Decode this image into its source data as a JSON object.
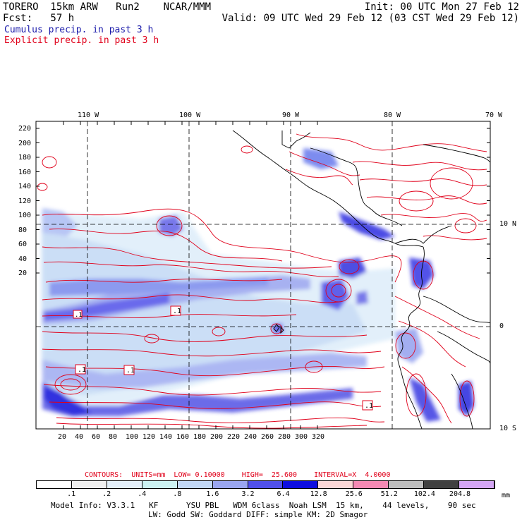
{
  "header": {
    "model": "TORERO  15km ARW   Run2    NCAR/MMM",
    "init": "Init: 00 UTC Mon 27 Feb 12",
    "fcst": "Fcst:   57 h",
    "valid": "Valid: 09 UTC Wed 29 Feb 12 (03 CST Wed 29 Feb 12)",
    "cumulus": "Cumulus precip. in past 3 h",
    "explicit": "Explicit precip. in past 3 h"
  },
  "map": {
    "lon_labels": [
      "110 W",
      "100 W",
      "90 W",
      "80 W",
      "70 W"
    ],
    "lat_labels_right": [
      "10 N",
      "0",
      "10 S"
    ],
    "y_ticks": [
      "220",
      "200",
      "180",
      "160",
      "140",
      "120",
      "100",
      "80",
      "60",
      "40",
      "20"
    ],
    "x_ticks": [
      "20",
      "40",
      "60",
      "80",
      "100",
      "120",
      "140",
      "160",
      "180",
      "200",
      "220",
      "240",
      "260",
      "280",
      "300",
      "320"
    ],
    "box_labels": [
      ".1",
      ".1",
      ".1",
      ".1",
      ".1"
    ],
    "colors": {
      "cumulus": "#1a1aaa",
      "explicit": "#e0001a"
    }
  },
  "contours": {
    "label": "CONTOURS:  UNITS=mm  LOW= 0.10000    HIGH=  25.600    INTERVAL=X  4.0000"
  },
  "colorbar": {
    "labels": [
      ".1",
      ".2",
      ".4",
      ".8",
      "1.6",
      "3.2",
      "6.4",
      "12.8",
      "25.6",
      "51.2",
      "102.4",
      "204.8"
    ],
    "units": "mm",
    "colors": [
      "#ffffff",
      "#f0f0f0",
      "#e4f0fa",
      "#ccf2f2",
      "#c2d8f6",
      "#9aa6f0",
      "#5050ea",
      "#0e0ee0",
      "#fbd6d6",
      "#f48ab4",
      "#bebebe",
      "#404040",
      "#d4a6f4"
    ]
  },
  "model_info": {
    "line1": "Model Info: V3.3.1   KF      YSU PBL   WDM 6class  Noah LSM  15 km,    44 levels,    90 sec",
    "line2": "LW: Godd SW: Goddard DIFF: simple KM: 2D Smagor"
  }
}
